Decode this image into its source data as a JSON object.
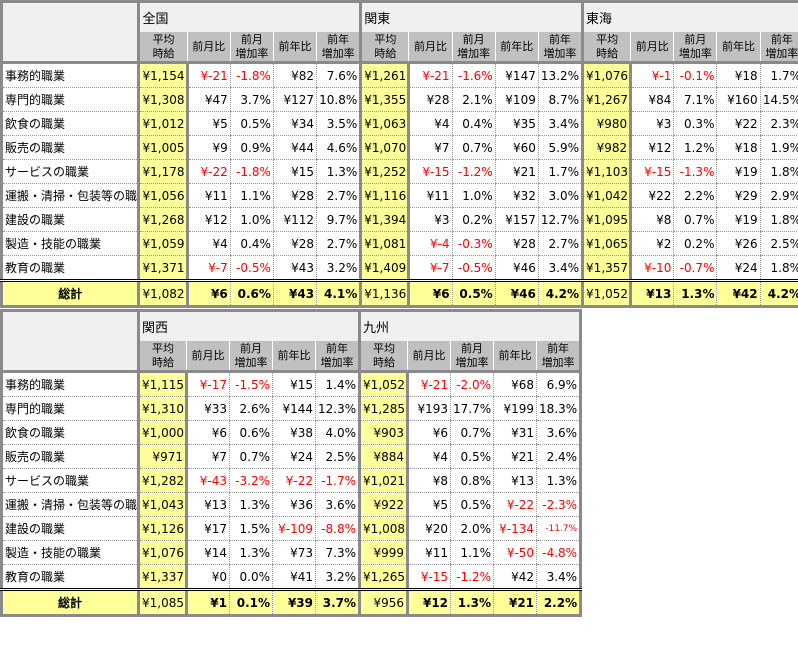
{
  "row_labels": [
    "事務的職業",
    "専門的職業",
    "飲食の職業",
    "販売の職業",
    "サービスの職業",
    "運搬・清掃・包装等の職業",
    "建設の職業",
    "製造・技能の職業",
    "教育の職業"
  ],
  "total_label": "総計",
  "column_headers": [
    "平均\n時給",
    "前月比",
    "前月\n増加率",
    "前年比",
    "前年\n増加率"
  ],
  "colors": {
    "negative": "#ff0000",
    "highlight": "#ffff99",
    "header": "#c0c0c0",
    "border": "#8a8a8a"
  },
  "tables": [
    {
      "regions": [
        {
          "name": "全国",
          "rows": [
            [
              "¥1,154",
              "¥-21",
              "-1.8%",
              "¥82",
              "7.6%"
            ],
            [
              "¥1,308",
              "¥47",
              "3.7%",
              "¥127",
              "10.8%"
            ],
            [
              "¥1,012",
              "¥5",
              "0.5%",
              "¥34",
              "3.5%"
            ],
            [
              "¥1,005",
              "¥9",
              "0.9%",
              "¥44",
              "4.6%"
            ],
            [
              "¥1,178",
              "¥-22",
              "-1.8%",
              "¥15",
              "1.3%"
            ],
            [
              "¥1,056",
              "¥11",
              "1.1%",
              "¥28",
              "2.7%"
            ],
            [
              "¥1,268",
              "¥12",
              "1.0%",
              "¥112",
              "9.7%"
            ],
            [
              "¥1,059",
              "¥4",
              "0.4%",
              "¥28",
              "2.7%"
            ],
            [
              "¥1,371",
              "¥-7",
              "-0.5%",
              "¥43",
              "3.2%"
            ]
          ],
          "total": [
            "¥1,082",
            "¥6",
            "0.6%",
            "¥43",
            "4.1%"
          ]
        },
        {
          "name": "関東",
          "rows": [
            [
              "¥1,261",
              "¥-21",
              "-1.6%",
              "¥147",
              "13.2%"
            ],
            [
              "¥1,355",
              "¥28",
              "2.1%",
              "¥109",
              "8.7%"
            ],
            [
              "¥1,063",
              "¥4",
              "0.4%",
              "¥35",
              "3.4%"
            ],
            [
              "¥1,070",
              "¥7",
              "0.7%",
              "¥60",
              "5.9%"
            ],
            [
              "¥1,252",
              "¥-15",
              "-1.2%",
              "¥21",
              "1.7%"
            ],
            [
              "¥1,116",
              "¥11",
              "1.0%",
              "¥32",
              "3.0%"
            ],
            [
              "¥1,394",
              "¥3",
              "0.2%",
              "¥157",
              "12.7%"
            ],
            [
              "¥1,081",
              "¥-4",
              "-0.3%",
              "¥28",
              "2.7%"
            ],
            [
              "¥1,409",
              "¥-7",
              "-0.5%",
              "¥46",
              "3.4%"
            ]
          ],
          "total": [
            "¥1,136",
            "¥6",
            "0.5%",
            "¥46",
            "4.2%"
          ]
        },
        {
          "name": "東海",
          "rows": [
            [
              "¥1,076",
              "¥-1",
              "-0.1%",
              "¥18",
              "1.7%"
            ],
            [
              "¥1,267",
              "¥84",
              "7.1%",
              "¥160",
              "14.5%"
            ],
            [
              "¥980",
              "¥3",
              "0.3%",
              "¥22",
              "2.3%"
            ],
            [
              "¥982",
              "¥12",
              "1.2%",
              "¥18",
              "1.9%"
            ],
            [
              "¥1,103",
              "¥-15",
              "-1.3%",
              "¥19",
              "1.8%"
            ],
            [
              "¥1,042",
              "¥22",
              "2.2%",
              "¥29",
              "2.9%"
            ],
            [
              "¥1,095",
              "¥8",
              "0.7%",
              "¥19",
              "1.8%"
            ],
            [
              "¥1,065",
              "¥2",
              "0.2%",
              "¥26",
              "2.5%"
            ],
            [
              "¥1,357",
              "¥-10",
              "-0.7%",
              "¥24",
              "1.8%"
            ]
          ],
          "total": [
            "¥1,052",
            "¥13",
            "1.3%",
            "¥42",
            "4.2%"
          ]
        }
      ]
    },
    {
      "regions": [
        {
          "name": "関西",
          "rows": [
            [
              "¥1,115",
              "¥-17",
              "-1.5%",
              "¥15",
              "1.4%"
            ],
            [
              "¥1,310",
              "¥33",
              "2.6%",
              "¥144",
              "12.3%"
            ],
            [
              "¥1,000",
              "¥6",
              "0.6%",
              "¥38",
              "4.0%"
            ],
            [
              "¥971",
              "¥7",
              "0.7%",
              "¥24",
              "2.5%"
            ],
            [
              "¥1,282",
              "¥-43",
              "-3.2%",
              "¥-22",
              "-1.7%"
            ],
            [
              "¥1,043",
              "¥13",
              "1.3%",
              "¥36",
              "3.6%"
            ],
            [
              "¥1,126",
              "¥17",
              "1.5%",
              "¥-109",
              "-8.8%"
            ],
            [
              "¥1,076",
              "¥14",
              "1.3%",
              "¥73",
              "7.3%"
            ],
            [
              "¥1,337",
              "¥0",
              "0.0%",
              "¥41",
              "3.2%"
            ]
          ],
          "total": [
            "¥1,085",
            "¥1",
            "0.1%",
            "¥39",
            "3.7%"
          ]
        },
        {
          "name": "九州",
          "rows": [
            [
              "¥1,052",
              "¥-21",
              "-2.0%",
              "¥68",
              "6.9%"
            ],
            [
              "¥1,285",
              "¥193",
              "17.7%",
              "¥199",
              "18.3%"
            ],
            [
              "¥903",
              "¥6",
              "0.7%",
              "¥31",
              "3.6%"
            ],
            [
              "¥884",
              "¥4",
              "0.5%",
              "¥21",
              "2.4%"
            ],
            [
              "¥1,021",
              "¥8",
              "0.8%",
              "¥13",
              "1.3%"
            ],
            [
              "¥922",
              "¥5",
              "0.5%",
              "¥-22",
              "-2.3%"
            ],
            [
              "¥1,008",
              "¥20",
              "2.0%",
              "¥-134",
              "-11.7%"
            ],
            [
              "¥999",
              "¥11",
              "1.1%",
              "¥-50",
              "-4.8%"
            ],
            [
              "¥1,265",
              "¥-15",
              "-1.2%",
              "¥42",
              "3.4%"
            ]
          ],
          "total": [
            "¥956",
            "¥12",
            "1.3%",
            "¥21",
            "2.2%"
          ]
        }
      ]
    }
  ]
}
